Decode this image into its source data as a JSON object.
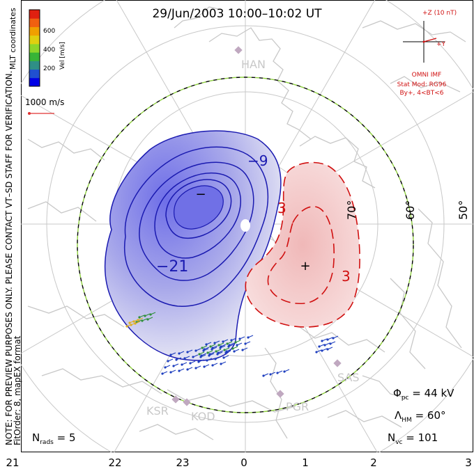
{
  "title": "29/Jun/2003  10:00–10:02 UT",
  "side_note": {
    "line1": "NOTE: FOR PREVIEW PURPOSES ONLY. PLEASE CONTACT VT–SD STAFF FOR VERIFICATION.",
    "line2": "FitOrder: 8, mapEX format"
  },
  "colorbar": {
    "label": "Vel [m/s]",
    "coord_label": "MLT coordinates",
    "ticks": [
      "600",
      "400",
      "200"
    ],
    "colors": [
      "#0000e6",
      "#2050d0",
      "#2f8f86",
      "#37b437",
      "#8ed62a",
      "#e0d010",
      "#f0a000",
      "#f06010",
      "#e02010"
    ]
  },
  "scale_vector": {
    "label": "1000 m/s",
    "color": "#e03030"
  },
  "imf": {
    "z_label": "+Z (10 nT)",
    "y_label": "+Y",
    "source": "OMNI IMF",
    "stat_mod": "Stat Mod: RG96",
    "condition": "By+, 4<BT<6",
    "color": "#d01010"
  },
  "stations": [
    "HAN",
    "SAS",
    "PGR",
    "KSR",
    "KOD"
  ],
  "latitude_labels": [
    "70°",
    "60°",
    "50°"
  ],
  "contour_labels": {
    "negative": "−9",
    "negative2": "−21",
    "positive": "3",
    "positive2": "3"
  },
  "pole_markers": {
    "min": "−",
    "max": "+"
  },
  "stats": {
    "phi_label": "Φ",
    "phi_sub": "pc",
    "phi_value": " = 44 kV",
    "lambda_label": "Λ",
    "lambda_sub": "HM",
    "lambda_value": " = 60°",
    "nvc_label": "N",
    "nvc_sub": "vc",
    "nvc_value": " = 101",
    "nrads_label": "N",
    "nrads_sub": "rads",
    "nrads_value": " = 5"
  },
  "mlt_axis": [
    "21",
    "22",
    "23",
    "0",
    "1",
    "2",
    "3"
  ],
  "colors": {
    "negative_fill": "#8080f0",
    "negative_line": "#1a1ab0",
    "positive_fill": "#f5c8c8",
    "positive_line": "#d01010",
    "boundary": "#8fd040",
    "grid": "#c8c8c8",
    "coast": "#c8c8c8",
    "station": "#c0a8c0"
  }
}
